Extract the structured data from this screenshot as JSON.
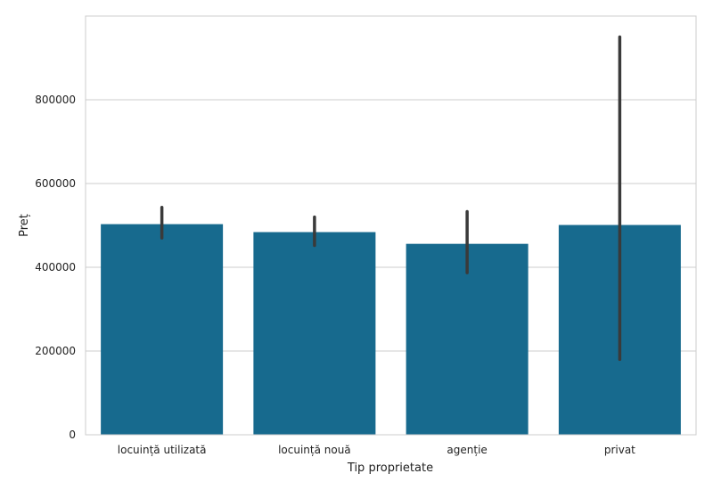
{
  "chart_data": {
    "type": "bar",
    "categories": [
      "locuință utilizată",
      "locuință nouă",
      "agenție",
      "privat"
    ],
    "values": [
      503000,
      484000,
      456000,
      501000
    ],
    "error_bars": [
      [
        470000,
        543000
      ],
      [
        452000,
        520000
      ],
      [
        387000,
        533000
      ],
      [
        180000,
        950000
      ]
    ],
    "xlabel": "Tip proprietate",
    "ylabel": "Preț",
    "ylim": [
      0,
      1000000
    ],
    "yticks": [
      0,
      200000,
      400000,
      600000,
      800000
    ],
    "ytick_labels": [
      "0",
      "200000",
      "400000",
      "600000",
      "800000"
    ],
    "grid": "horizontal",
    "colors": {
      "bar": "#176a8e",
      "error_bar": "#3a3a3a",
      "grid": "#cccccc",
      "frame": "#cccccc"
    }
  }
}
